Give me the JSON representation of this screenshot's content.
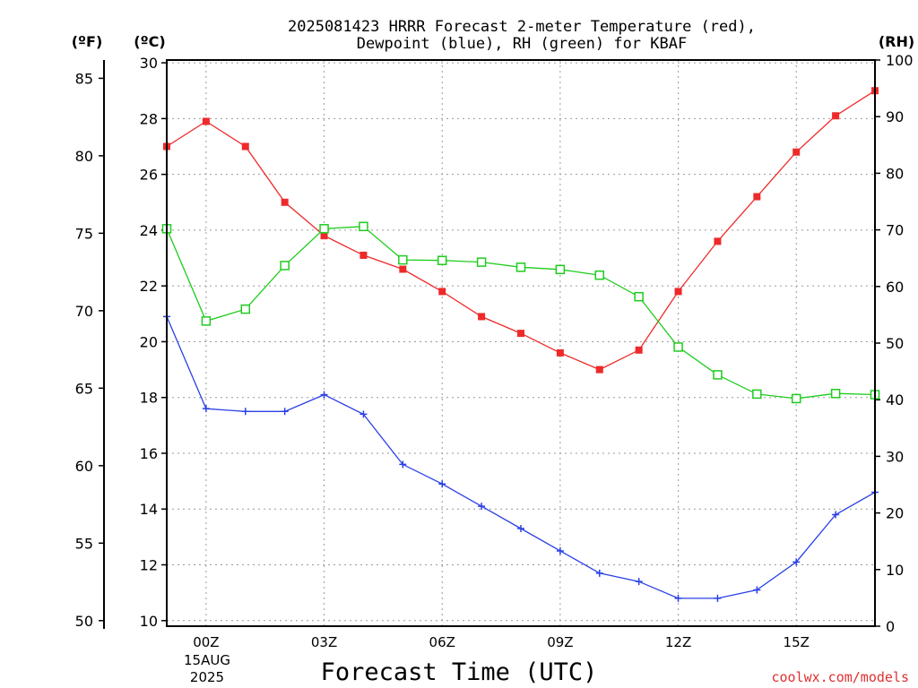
{
  "chart_data": {
    "type": "line",
    "title": "2025081423 HRRR Forecast 2-meter Temperature (red),",
    "subtitle": "Dewpoint (blue), RH (green) for KBAF",
    "xlabel": "Forecast Time (UTC)",
    "x_tick_labels": [
      "00Z",
      "03Z",
      "06Z",
      "09Z",
      "12Z",
      "15Z"
    ],
    "x_date_labels": [
      "15AUG",
      "2025"
    ],
    "x": [
      "2025-08-14T23",
      "2025-08-15T00",
      "2025-08-15T01",
      "2025-08-15T02",
      "2025-08-15T03",
      "2025-08-15T04",
      "2025-08-15T05",
      "2025-08-15T06",
      "2025-08-15T07",
      "2025-08-15T08",
      "2025-08-15T09",
      "2025-08-15T10",
      "2025-08-15T11",
      "2025-08-15T12",
      "2025-08-15T13",
      "2025-08-15T14",
      "2025-08-15T15",
      "2025-08-15T16",
      "2025-08-15T17"
    ],
    "axes": {
      "fahrenheit": {
        "label": "(ºF)",
        "ticks": [
          50,
          55,
          60,
          65,
          70,
          75,
          80,
          85
        ]
      },
      "celsius": {
        "label": "(ºC)",
        "ylim": [
          9.8,
          30.1
        ],
        "ticks": [
          10,
          12,
          14,
          16,
          18,
          20,
          22,
          24,
          26,
          28,
          30
        ]
      },
      "rh": {
        "label": "(RH)",
        "ylim": [
          0,
          100
        ],
        "ticks": [
          0,
          10,
          20,
          30,
          40,
          50,
          60,
          70,
          80,
          90,
          100
        ]
      }
    },
    "grid": true,
    "series": [
      {
        "color": "#ee2a2a",
        "marker": "filled-square",
        "axis": "celsius",
        "values": [
          27.0,
          27.9,
          27.0,
          25.0,
          23.8,
          23.1,
          22.6,
          21.8,
          20.9,
          20.3,
          19.6,
          19.0,
          19.7,
          21.8,
          23.6,
          25.2,
          26.8,
          28.1,
          29.0
        ]
      },
      {
        "color": "#2a40e6",
        "marker": "plus",
        "axis": "celsius",
        "values": [
          20.9,
          17.6,
          17.5,
          17.5,
          18.1,
          17.4,
          15.6,
          14.9,
          14.1,
          13.3,
          12.5,
          11.7,
          11.4,
          10.8,
          10.8,
          11.1,
          12.1,
          13.8,
          14.6
        ]
      },
      {
        "color": "#1ecc1e",
        "marker": "open-square",
        "axis": "rh",
        "values": [
          70.2,
          53.9,
          56.0,
          63.7,
          70.2,
          70.6,
          64.7,
          64.6,
          64.3,
          63.4,
          63.0,
          62.0,
          58.2,
          49.3,
          44.4,
          41.0,
          40.2,
          41.1,
          40.9
        ]
      }
    ]
  },
  "credit": {
    "text": "coolwx.com/models",
    "color": "#e03030"
  }
}
